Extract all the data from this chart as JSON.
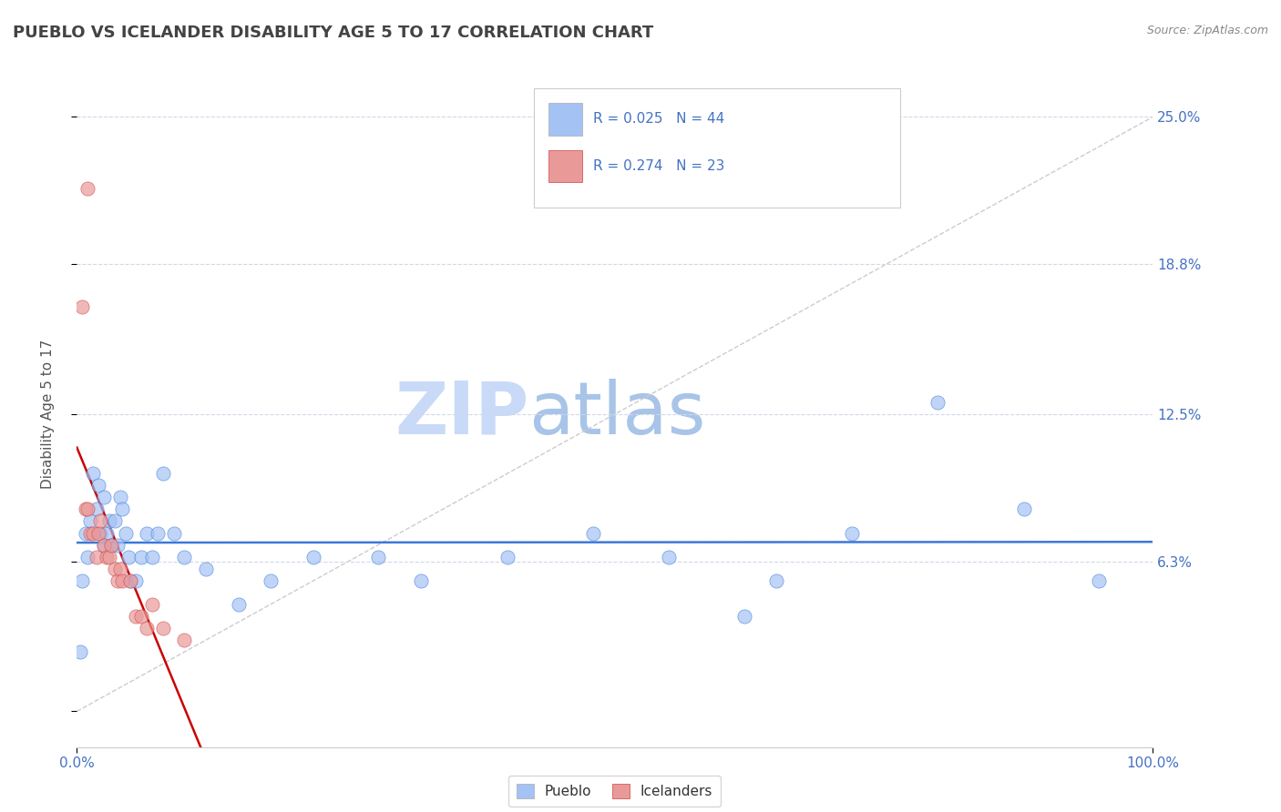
{
  "title": "PUEBLO VS ICELANDER DISABILITY AGE 5 TO 17 CORRELATION CHART",
  "source_text": "Source: ZipAtlas.com",
  "ylabel": "Disability Age 5 to 17",
  "xlim": [
    0.0,
    1.0
  ],
  "ylim": [
    -0.015,
    0.265
  ],
  "yticks": [
    0.0,
    0.063,
    0.125,
    0.188,
    0.25
  ],
  "ytick_labels": [
    "",
    "6.3%",
    "12.5%",
    "18.8%",
    "25.0%"
  ],
  "xtick_labels": [
    "0.0%",
    "100.0%"
  ],
  "legend_labels": [
    "Pueblo",
    "Icelanders"
  ],
  "pueblo_R": "0.025",
  "pueblo_N": "44",
  "icelander_R": "0.274",
  "icelander_N": "23",
  "pueblo_scatter_color": "#a4c2f4",
  "icelander_scatter_color": "#ea9999",
  "trendline_pueblo_color": "#3c78d8",
  "trendline_icelander_color": "#cc0000",
  "diag_line_color": "#cccccc",
  "watermark_zip_color": "#c9daf8",
  "watermark_atlas_color": "#a0c0e8",
  "background_color": "#ffffff",
  "grid_color": "#d0d8e8",
  "pueblo_x": [
    0.003,
    0.005,
    0.008,
    0.01,
    0.012,
    0.015,
    0.018,
    0.02,
    0.022,
    0.025,
    0.025,
    0.028,
    0.03,
    0.032,
    0.035,
    0.038,
    0.04,
    0.042,
    0.045,
    0.048,
    0.05,
    0.055,
    0.06,
    0.065,
    0.07,
    0.075,
    0.08,
    0.09,
    0.1,
    0.12,
    0.15,
    0.18,
    0.22,
    0.28,
    0.32,
    0.4,
    0.48,
    0.55,
    0.62,
    0.65,
    0.72,
    0.8,
    0.88,
    0.95
  ],
  "pueblo_y": [
    0.025,
    0.055,
    0.075,
    0.065,
    0.08,
    0.1,
    0.085,
    0.095,
    0.075,
    0.07,
    0.09,
    0.075,
    0.08,
    0.07,
    0.08,
    0.07,
    0.09,
    0.085,
    0.075,
    0.065,
    0.055,
    0.055,
    0.065,
    0.075,
    0.065,
    0.075,
    0.1,
    0.075,
    0.065,
    0.06,
    0.045,
    0.055,
    0.065,
    0.065,
    0.055,
    0.065,
    0.075,
    0.065,
    0.04,
    0.055,
    0.075,
    0.13,
    0.085,
    0.055
  ],
  "icelander_x": [
    0.005,
    0.008,
    0.01,
    0.012,
    0.015,
    0.018,
    0.02,
    0.022,
    0.025,
    0.028,
    0.03,
    0.032,
    0.035,
    0.038,
    0.04,
    0.042,
    0.05,
    0.055,
    0.06,
    0.065,
    0.07,
    0.08,
    0.1
  ],
  "icelander_y": [
    0.17,
    0.085,
    0.085,
    0.075,
    0.075,
    0.065,
    0.075,
    0.08,
    0.07,
    0.065,
    0.065,
    0.07,
    0.06,
    0.055,
    0.06,
    0.055,
    0.055,
    0.04,
    0.04,
    0.035,
    0.045,
    0.035,
    0.03
  ],
  "icelander_outlier_x": [
    0.01
  ],
  "icelander_outlier_y": [
    0.22
  ]
}
